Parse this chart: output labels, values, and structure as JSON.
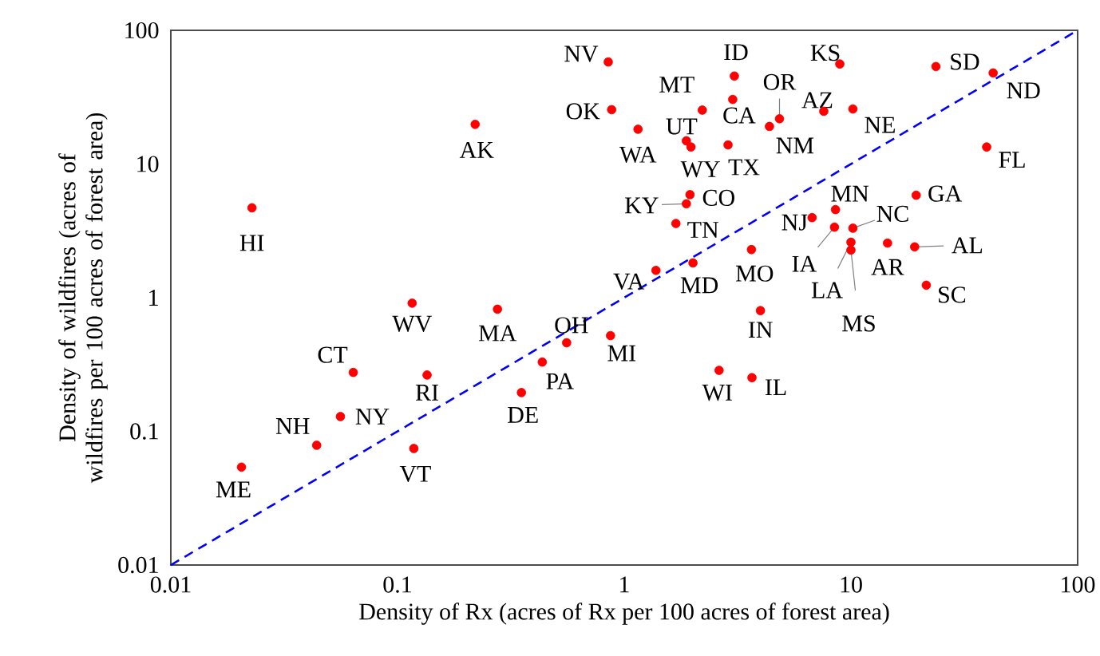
{
  "chart_data": {
    "type": "scatter",
    "xlabel": "Density of Rx (acres of Rx per 100 acres of forest area)",
    "ylabel": "Density of wildfires (acres of wildfires per 100 acres of forest area)",
    "log": "xy",
    "xlim": [
      0.01,
      100
    ],
    "ylim": [
      0.01,
      100
    ],
    "xticks": [
      0.01,
      0.1,
      1,
      10,
      100
    ],
    "yticks": [
      0.01,
      0.1,
      1,
      10,
      100
    ],
    "series": [
      {
        "type": "scatter",
        "marker": "circle",
        "color": "#ff0000",
        "x": [
          0.85,
          0.88,
          0.22,
          0.0228,
          0.116,
          0.276,
          0.557,
          0.87,
          0.435,
          0.352,
          0.0638,
          0.135,
          0.056,
          0.044,
          0.118,
          0.0205,
          3.06,
          8.93,
          23.7,
          42.4,
          2.21,
          3.01,
          4.84,
          4.37,
          7.59,
          10.2,
          1.15,
          1.88,
          1.97,
          2.87,
          39.7,
          1.95,
          1.88,
          1.69,
          19.4,
          8.55,
          6.74,
          8.46,
          10.2,
          10,
          10,
          14.5,
          19.1,
          21.5,
          1.38,
          2.01,
          3.64,
          3.99,
          2.62,
          3.66
        ],
        "values": [
          58,
          25.5,
          19.8,
          4.7,
          0.91,
          0.82,
          0.46,
          0.52,
          0.33,
          0.195,
          0.276,
          0.264,
          0.129,
          0.0787,
          0.0744,
          0.054,
          45.5,
          56,
          53.6,
          48,
          25.3,
          30.4,
          21.8,
          19.1,
          24.8,
          25.8,
          18.2,
          14.9,
          13.4,
          13.9,
          13.4,
          5.9,
          5.04,
          3.59,
          5.84,
          4.56,
          3.97,
          3.37,
          3.31,
          2.6,
          2.27,
          2.56,
          2.4,
          1.24,
          1.6,
          1.82,
          2.29,
          0.8,
          0.286,
          0.252
        ]
      },
      {
        "type": "line",
        "color": "#0000ff",
        "line_style": "dashed",
        "marker": "none",
        "x": [
          0.01,
          100
        ],
        "values": [
          0.01,
          100
        ]
      }
    ],
    "annotations": [
      {
        "text": "NV",
        "x": 0.85,
        "y": 58
      },
      {
        "text": "OK",
        "x": 0.88,
        "y": 25.5
      },
      {
        "text": "AK",
        "x": 0.22,
        "y": 19.8
      },
      {
        "text": "HI",
        "x": 0.0228,
        "y": 4.7
      },
      {
        "text": "WV",
        "x": 0.116,
        "y": 0.91
      },
      {
        "text": "MA",
        "x": 0.276,
        "y": 0.82
      },
      {
        "text": "OH",
        "x": 0.557,
        "y": 0.46
      },
      {
        "text": "MI",
        "x": 0.87,
        "y": 0.52
      },
      {
        "text": "PA",
        "x": 0.435,
        "y": 0.33
      },
      {
        "text": "DE",
        "x": 0.352,
        "y": 0.195
      },
      {
        "text": "CT",
        "x": 0.0638,
        "y": 0.276
      },
      {
        "text": "RI",
        "x": 0.135,
        "y": 0.264
      },
      {
        "text": "NY",
        "x": 0.056,
        "y": 0.129
      },
      {
        "text": "NH",
        "x": 0.044,
        "y": 0.0787
      },
      {
        "text": "VT",
        "x": 0.118,
        "y": 0.0744
      },
      {
        "text": "ME",
        "x": 0.0205,
        "y": 0.054
      },
      {
        "text": "ID",
        "x": 3.06,
        "y": 45.5
      },
      {
        "text": "KS",
        "x": 8.93,
        "y": 56
      },
      {
        "text": "SD",
        "x": 23.7,
        "y": 53.6
      },
      {
        "text": "ND",
        "x": 42.4,
        "y": 48
      },
      {
        "text": "MT",
        "x": 2.21,
        "y": 25.3
      },
      {
        "text": "CA",
        "x": 3.01,
        "y": 30.4
      },
      {
        "text": "OR",
        "x": 4.84,
        "y": 21.8
      },
      {
        "text": "NM",
        "x": 4.37,
        "y": 19.1
      },
      {
        "text": "AZ",
        "x": 7.59,
        "y": 24.8
      },
      {
        "text": "NE",
        "x": 10.2,
        "y": 25.8
      },
      {
        "text": "WA",
        "x": 1.15,
        "y": 18.2
      },
      {
        "text": "UT",
        "x": 1.88,
        "y": 14.9
      },
      {
        "text": "WY",
        "x": 1.97,
        "y": 13.4
      },
      {
        "text": "TX",
        "x": 2.87,
        "y": 13.9
      },
      {
        "text": "FL",
        "x": 39.7,
        "y": 13.4
      },
      {
        "text": "CO",
        "x": 1.95,
        "y": 5.9
      },
      {
        "text": "KY",
        "x": 1.88,
        "y": 5.04
      },
      {
        "text": "TN",
        "x": 1.69,
        "y": 3.59
      },
      {
        "text": "GA",
        "x": 19.4,
        "y": 5.84
      },
      {
        "text": "MN",
        "x": 8.55,
        "y": 4.56
      },
      {
        "text": "NJ",
        "x": 6.74,
        "y": 3.97
      },
      {
        "text": "IA",
        "x": 8.46,
        "y": 3.37
      },
      {
        "text": "NC",
        "x": 10.2,
        "y": 3.31
      },
      {
        "text": "LA",
        "x": 10,
        "y": 2.6
      },
      {
        "text": "MS",
        "x": 10,
        "y": 2.27
      },
      {
        "text": "AR",
        "x": 14.5,
        "y": 2.56
      },
      {
        "text": "AL",
        "x": 19.1,
        "y": 2.4
      },
      {
        "text": "SC",
        "x": 21.5,
        "y": 1.24
      },
      {
        "text": "VA",
        "x": 1.38,
        "y": 1.6
      },
      {
        "text": "MD",
        "x": 2.01,
        "y": 1.82
      },
      {
        "text": "MO",
        "x": 3.64,
        "y": 2.29
      },
      {
        "text": "IN",
        "x": 3.99,
        "y": 0.8
      },
      {
        "text": "WI",
        "x": 2.62,
        "y": 0.286
      },
      {
        "text": "IL",
        "x": 3.66,
        "y": 0.252
      }
    ]
  }
}
